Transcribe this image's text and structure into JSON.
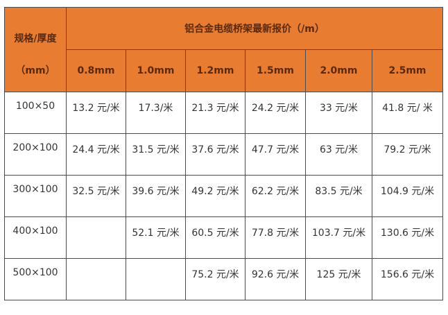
{
  "header": {
    "corner_line1": "规格/厚度",
    "corner_line2": "（mm）",
    "title": "铝合金电缆桥架最新报价（/m）",
    "thicknesses": [
      "0.8mm",
      "1.0mm",
      "1.2mm",
      "1.5mm",
      "2.0mm",
      "2.5mm"
    ]
  },
  "colors": {
    "header_bg": "#e87d31",
    "border": "#4a4a4a"
  },
  "rows": [
    {
      "size": "100×50",
      "prices": [
        "13.2 元/米",
        "17.3/米",
        "21.3 元/米",
        "24.2 元/米",
        "33 元/米",
        "41.8 元/ 米"
      ]
    },
    {
      "size": "200×100",
      "prices": [
        "24.4 元/米",
        "31.5 元/米",
        "37.6 元/米",
        "47.7 元/米",
        "63 元/米",
        "79.2 元/米"
      ]
    },
    {
      "size": "300×100",
      "prices": [
        "32.5 元/米",
        "39.6 元/米",
        "49.2 元/米",
        "62.2 元/米",
        "83.5 元/米",
        "104.9 元/米"
      ]
    },
    {
      "size": "400×100",
      "prices": [
        "",
        "52.1 元/米",
        "60.5 元/米",
        "77.8 元/米",
        "103.7 元/米",
        "130.6 元/米"
      ]
    },
    {
      "size": "500×100",
      "prices": [
        "",
        "",
        "75.2 元/米",
        "92.6 元/米",
        "125 元/米",
        "156.6 元/米"
      ]
    }
  ]
}
